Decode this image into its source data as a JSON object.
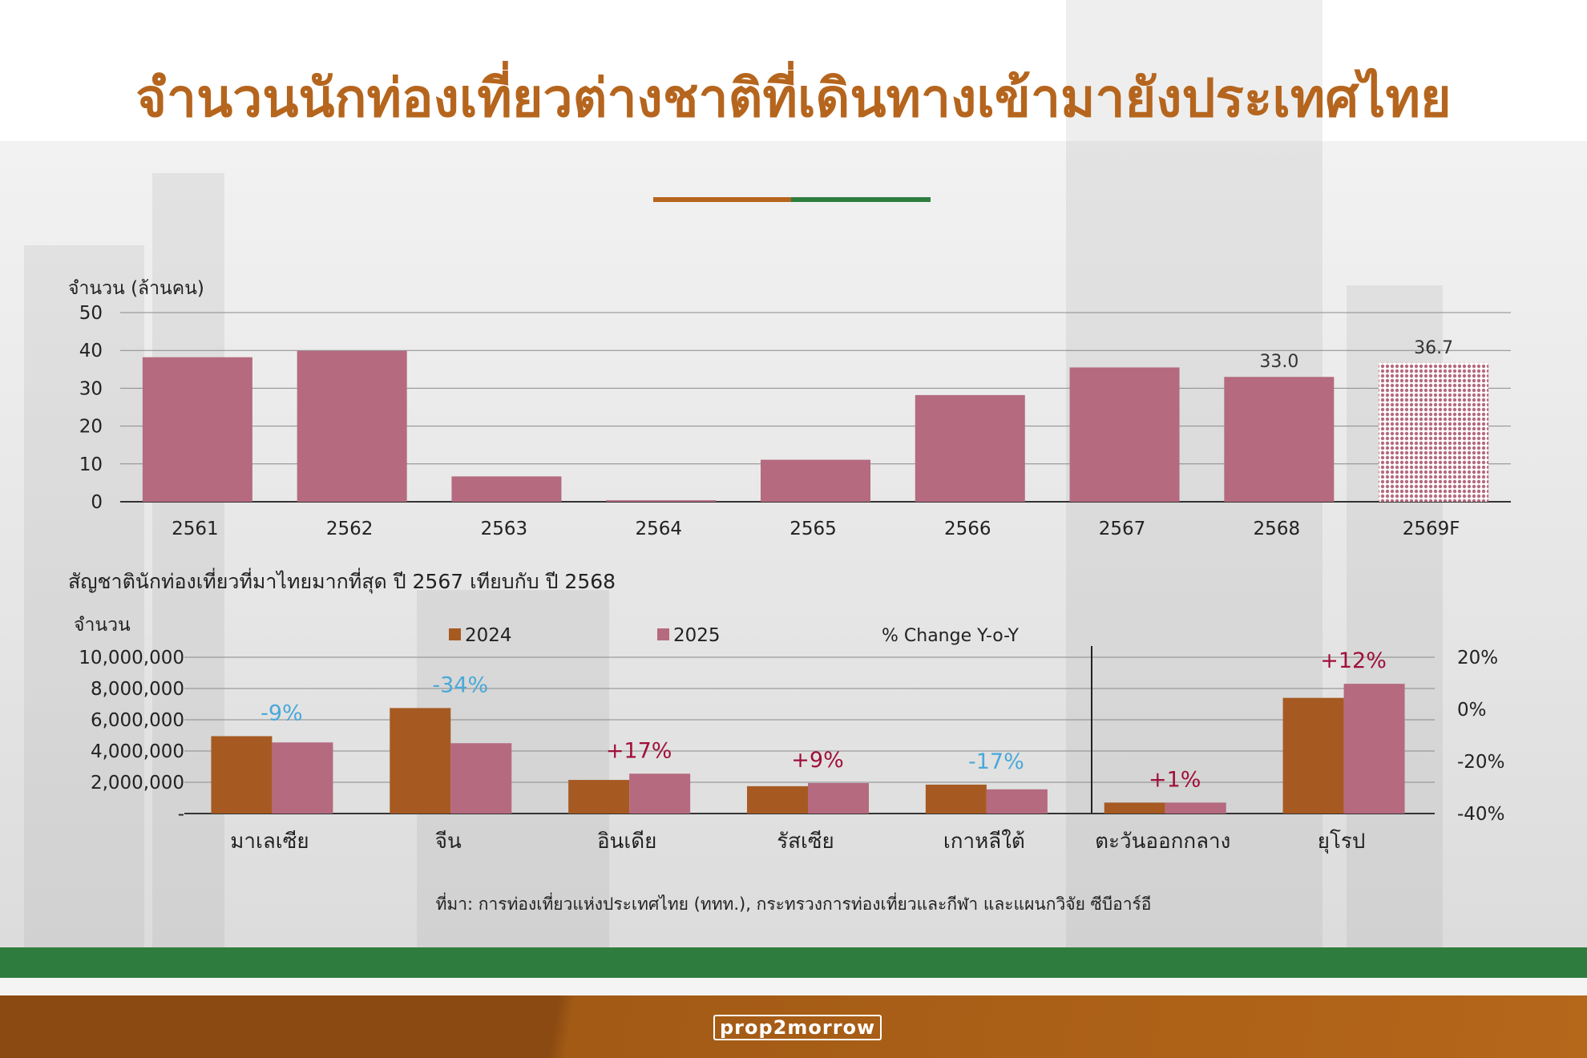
{
  "title": "จำนวนนักท่องเที่ยวต่างชาติที่เดินทางเข้ามายังประเทศไทย",
  "logo_text": "prop2morrow",
  "source": "ที่มา: การท่องเที่ยวแห่งประเทศไทย (ททท.), กระทรวงการท่องเที่ยวและกีฬา และแผนกวิจัย ซีบีอาร์อี",
  "colors": {
    "title": "#b5651d",
    "bar_2025": "#b56a7f",
    "bar_2024": "#a65a22",
    "rule_left": "#b5651d",
    "rule_right": "#2e7d3e",
    "neg_change": "#4aa8d8",
    "pos_change": "#a0103a"
  },
  "chart_data": [
    {
      "type": "bar",
      "ylabel": "จำนวน (ล้านคน)",
      "ylim": [
        0,
        50
      ],
      "yticks": [
        0,
        10,
        20,
        30,
        40,
        50
      ],
      "grid": true,
      "categories": [
        "2561",
        "2562",
        "2563",
        "2564",
        "2565",
        "2566",
        "2567",
        "2568",
        "2569F"
      ],
      "values": [
        38.2,
        39.9,
        6.7,
        0.4,
        11.1,
        28.2,
        35.5,
        33.0,
        36.7
      ],
      "data_labels": {
        "7": "33.0",
        "8": "36.7"
      },
      "forecast_index": 8
    },
    {
      "type": "bar",
      "title": "สัญชาตินักท่องเที่ยวที่มาไทยมากที่สุด ปี 2567 เทียบกับ ปี 2568",
      "ylabel": "จำนวน",
      "ylim": [
        0,
        10000000
      ],
      "yticks": [
        "-",
        "2,000,000",
        "4,000,000",
        "6,000,000",
        "8,000,000",
        "10,000,000"
      ],
      "y2ticks": [
        "-40%",
        "-20%",
        "0%",
        "20%"
      ],
      "y2label": "% Change Y-o-Y",
      "legend": [
        "2024",
        "2025"
      ],
      "categories": [
        "มาเลเซีย",
        "จีน",
        "อินเดีย",
        "รัสเซีย",
        "เกาหลีใต้",
        "ตะวันออกกลาง",
        "ยุโรป"
      ],
      "series": [
        {
          "name": "2024",
          "values": [
            4950000,
            6750000,
            2150000,
            1750000,
            1850000,
            700000,
            7400000
          ]
        },
        {
          "name": "2025",
          "values": [
            4550000,
            4500000,
            2550000,
            1950000,
            1550000,
            700000,
            8300000
          ]
        }
      ],
      "change_labels": [
        "-9%",
        "-34%",
        "+17%",
        "+9%",
        "-17%",
        "+1%",
        "+12%"
      ]
    }
  ]
}
